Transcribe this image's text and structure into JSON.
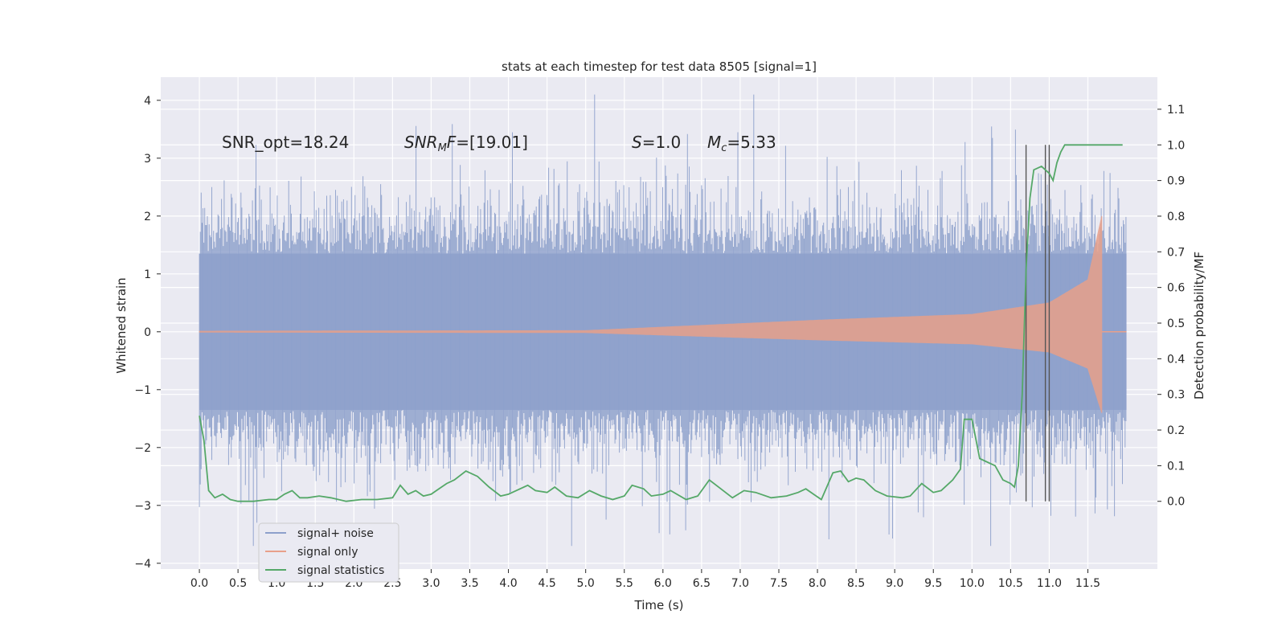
{
  "chart_data": {
    "type": "line",
    "title": "stats at each timestep for test data 8505 [signal=1]",
    "xlabel": "Time (s)",
    "ylabel": "Whitened strain",
    "y2label": "Detection probability/MF",
    "xlim": [
      -0.5,
      12.4
    ],
    "ylim": [
      -4.1,
      4.4
    ],
    "y2lim": [
      -0.19,
      1.19
    ],
    "x_ticks": [
      "0.0",
      "0.5",
      "1.0",
      "1.5",
      "2.0",
      "2.5",
      "3.0",
      "3.5",
      "4.0",
      "4.5",
      "5.0",
      "5.5",
      "6.0",
      "6.5",
      "7.0",
      "7.5",
      "8.0",
      "8.5",
      "9.0",
      "9.5",
      "10.0",
      "10.5",
      "11.0",
      "11.5"
    ],
    "y_ticks": [
      "4",
      "3",
      "2",
      "1",
      "0",
      "−1",
      "−2",
      "−3",
      "−4"
    ],
    "y2_ticks": [
      "1.1",
      "1.0",
      "0.9",
      "0.8",
      "0.7",
      "0.6",
      "0.5",
      "0.4",
      "0.3",
      "0.2",
      "0.1",
      "0.0"
    ],
    "grid": true,
    "legend_position": "lower-left",
    "annotations": [
      {
        "id": "snr_opt",
        "text": "SNR_opt=18.24"
      },
      {
        "id": "snr_mf",
        "text": "SNR_MF=[19.01]"
      },
      {
        "id": "s",
        "text": "S=1.0"
      },
      {
        "id": "mc",
        "text": "M_c=5.33"
      }
    ],
    "series": [
      {
        "name": "signal+ noise",
        "color": "#8da0cb",
        "kind": "noise",
        "x_range": [
          0.0,
          12.0
        ],
        "envelope": 1.35,
        "peak_max": 4.1,
        "peak_min": -3.7
      },
      {
        "name": "signal only",
        "color": "#e8a08a",
        "kind": "chirp",
        "x_range": [
          0.0,
          11.68
        ],
        "amplitude_points": [
          [
            0.0,
            0.01
          ],
          [
            5.0,
            0.02
          ],
          [
            8.0,
            0.2
          ],
          [
            10.0,
            0.3
          ],
          [
            11.0,
            0.5
          ],
          [
            11.5,
            0.9
          ],
          [
            11.68,
            2.0
          ]
        ]
      },
      {
        "name": "signal statistics",
        "color": "#55a868",
        "axis": "right",
        "x": [
          0.0,
          0.06,
          0.12,
          0.2,
          0.3,
          0.4,
          0.5,
          0.7,
          0.9,
          1.0,
          1.1,
          1.2,
          1.3,
          1.4,
          1.55,
          1.7,
          1.9,
          2.1,
          2.3,
          2.5,
          2.6,
          2.7,
          2.8,
          2.9,
          3.0,
          3.1,
          3.2,
          3.3,
          3.45,
          3.6,
          3.75,
          3.9,
          4.0,
          4.1,
          4.25,
          4.35,
          4.5,
          4.6,
          4.75,
          4.9,
          5.05,
          5.2,
          5.35,
          5.5,
          5.6,
          5.75,
          5.85,
          6.0,
          6.1,
          6.3,
          6.45,
          6.6,
          6.75,
          6.9,
          7.05,
          7.2,
          7.4,
          7.6,
          7.75,
          7.85,
          7.95,
          8.05,
          8.2,
          8.3,
          8.4,
          8.5,
          8.6,
          8.75,
          8.9,
          9.1,
          9.2,
          9.35,
          9.5,
          9.6,
          9.75,
          9.85,
          9.9,
          10.0,
          10.1,
          10.2,
          10.3,
          10.4,
          10.5,
          10.55,
          10.6,
          10.65,
          10.7,
          10.75,
          10.8,
          10.9,
          11.0,
          11.05,
          11.1,
          11.15,
          11.2,
          11.3,
          11.5,
          11.7,
          11.95
        ],
        "values": [
          0.24,
          0.17,
          0.03,
          0.01,
          0.02,
          0.005,
          0.0,
          0.0,
          0.005,
          0.005,
          0.02,
          0.03,
          0.01,
          0.01,
          0.015,
          0.01,
          0.0,
          0.005,
          0.005,
          0.01,
          0.045,
          0.02,
          0.03,
          0.015,
          0.02,
          0.035,
          0.05,
          0.06,
          0.085,
          0.07,
          0.04,
          0.015,
          0.02,
          0.03,
          0.045,
          0.03,
          0.025,
          0.04,
          0.015,
          0.01,
          0.03,
          0.015,
          0.005,
          0.015,
          0.045,
          0.035,
          0.015,
          0.02,
          0.03,
          0.005,
          0.015,
          0.06,
          0.035,
          0.01,
          0.03,
          0.025,
          0.01,
          0.015,
          0.025,
          0.035,
          0.02,
          0.005,
          0.08,
          0.085,
          0.055,
          0.065,
          0.06,
          0.03,
          0.015,
          0.01,
          0.015,
          0.05,
          0.025,
          0.03,
          0.06,
          0.09,
          0.23,
          0.23,
          0.12,
          0.11,
          0.1,
          0.06,
          0.05,
          0.04,
          0.1,
          0.3,
          0.65,
          0.85,
          0.93,
          0.94,
          0.92,
          0.9,
          0.95,
          0.98,
          1.0,
          1.0,
          1.0,
          1.0,
          1.0
        ]
      }
    ],
    "vertical_lines": [
      10.7,
      10.95,
      11.0
    ]
  }
}
